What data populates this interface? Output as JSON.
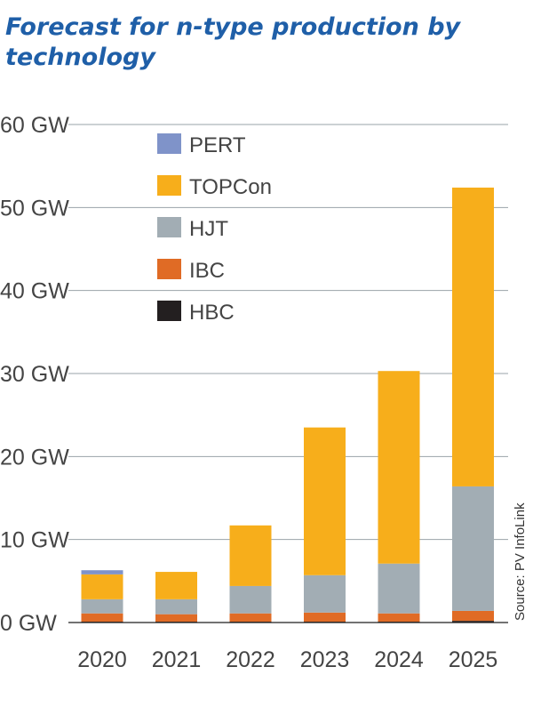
{
  "title": "Forecast for n-type production by technology",
  "source": "Source: PV InfoLink",
  "colors": {
    "PERT": "#7f93c9",
    "TOPCon": "#f7ae1b",
    "HJT": "#a2adb4",
    "IBC": "#e06b25",
    "HBC": "#231f20",
    "title": "#1f5fa8",
    "grid": "#9aa3a8",
    "axis": "#444444"
  },
  "chart_data": {
    "type": "bar",
    "stacked": true,
    "title": "Forecast for n-type production by technology",
    "categories": [
      "2020",
      "2021",
      "2022",
      "2023",
      "2024",
      "2025"
    ],
    "series": [
      {
        "name": "HBC",
        "values": [
          0.1,
          0.1,
          0.1,
          0.1,
          0.1,
          0.2
        ]
      },
      {
        "name": "IBC",
        "values": [
          1.0,
          0.9,
          1.0,
          1.1,
          1.0,
          1.2
        ]
      },
      {
        "name": "HJT",
        "values": [
          1.7,
          1.8,
          3.3,
          4.5,
          6.0,
          15.0
        ]
      },
      {
        "name": "TOPCon",
        "values": [
          3.0,
          3.3,
          7.3,
          17.8,
          23.2,
          36.0
        ]
      },
      {
        "name": "PERT",
        "values": [
          0.5,
          0.0,
          0.0,
          0.0,
          0.0,
          0.0
        ]
      }
    ],
    "legend_order": [
      "PERT",
      "TOPCon",
      "HJT",
      "IBC",
      "HBC"
    ],
    "ylim": [
      0,
      60
    ],
    "yticks": [
      0,
      10,
      20,
      30,
      40,
      50,
      60
    ],
    "ytick_labels": [
      "0 GW",
      "10 GW",
      "20 GW",
      "30 GW",
      "40 GW",
      "50 GW",
      "60 GW"
    ],
    "xlabel": "",
    "ylabel": "",
    "grid": true,
    "legend_position": "top-left"
  }
}
